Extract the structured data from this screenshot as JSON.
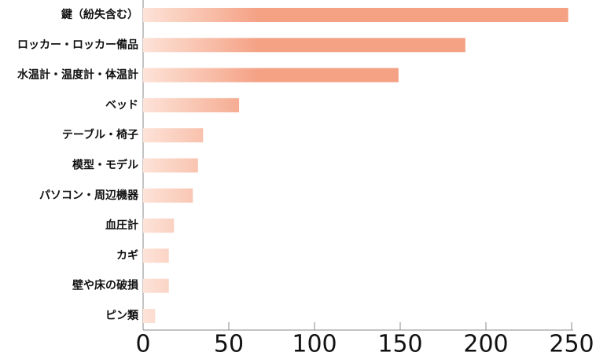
{
  "chart_data": {
    "type": "bar",
    "orientation": "horizontal",
    "categories": [
      "鍵（紛失含む）",
      "ロッカー・ロッカー備品",
      "水温計・温度計・体温計",
      "ベッド",
      "テーブル・椅子",
      "模型・モデル",
      "パソコン・周辺機器",
      "血圧計",
      "カギ",
      "壁や床の破損",
      "ピン類"
    ],
    "values": [
      248,
      188,
      149,
      56,
      35,
      32,
      29,
      18,
      15,
      15,
      7
    ],
    "color": "#f4a184",
    "xlim": [
      0,
      250
    ],
    "xticks": [
      0,
      50,
      100,
      150,
      200,
      250
    ]
  }
}
